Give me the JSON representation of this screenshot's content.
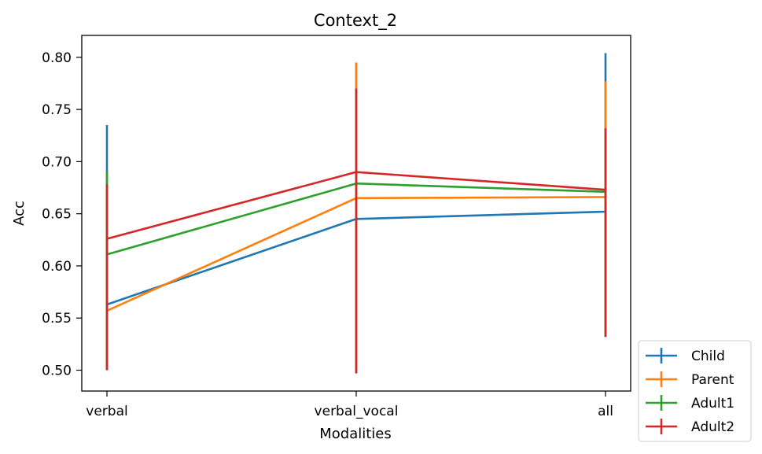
{
  "chart_data": {
    "type": "line",
    "title": "Context_2",
    "xlabel": "Modalities",
    "ylabel": "Acc",
    "categories": [
      "verbal",
      "verbal_vocal",
      "all"
    ],
    "ylim": [
      0.48,
      0.821
    ],
    "yticks": [
      "0.50",
      "0.55",
      "0.60",
      "0.65",
      "0.70",
      "0.75",
      "0.80"
    ],
    "yticks_values": [
      0.5,
      0.55,
      0.6,
      0.65,
      0.7,
      0.75,
      0.8
    ],
    "grid": false,
    "error_bars": true,
    "legend_position": "bottom-right, outside plot",
    "series": [
      {
        "name": "Child",
        "color": "#1f77b4",
        "values": [
          0.563,
          0.645,
          0.652
        ],
        "err_low": [
          0.5,
          0.497,
          0.532
        ],
        "err_high": [
          0.735,
          0.795,
          0.804
        ]
      },
      {
        "name": "Parent",
        "color": "#ff7f0e",
        "values": [
          0.557,
          0.665,
          0.666
        ],
        "err_low": [
          0.5,
          0.497,
          0.532
        ],
        "err_high": [
          0.69,
          0.795,
          0.777
        ]
      },
      {
        "name": "Adult1",
        "color": "#2ca02c",
        "values": [
          0.611,
          0.679,
          0.671
        ],
        "err_low": [
          0.5,
          0.497,
          0.532
        ],
        "err_high": [
          0.69,
          0.77,
          0.732
        ]
      },
      {
        "name": "Adult2",
        "color": "#d62728",
        "values": [
          0.626,
          0.69,
          0.673
        ],
        "err_low": [
          0.5,
          0.497,
          0.532
        ],
        "err_high": [
          0.678,
          0.77,
          0.732
        ]
      }
    ]
  }
}
